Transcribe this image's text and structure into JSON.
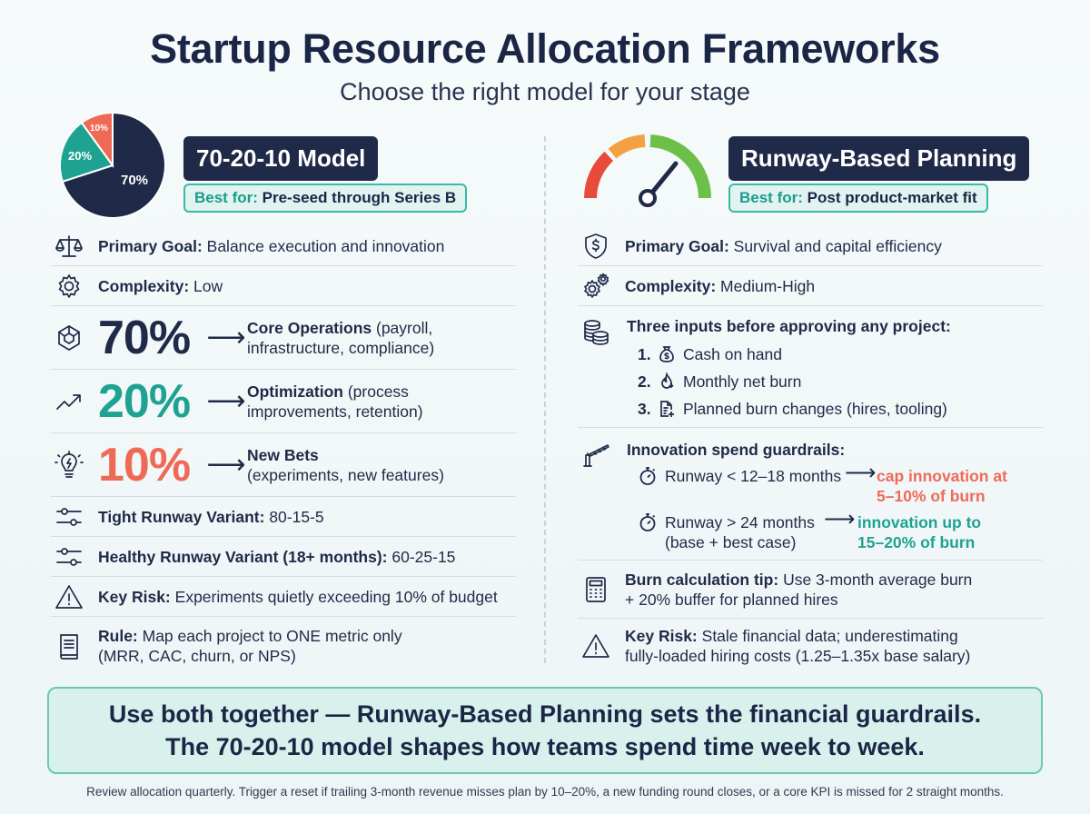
{
  "header": {
    "title": "Startup Resource Allocation Frameworks",
    "subtitle": "Choose the right model for your stage"
  },
  "left": {
    "pie": {
      "slices": [
        70,
        20,
        10
      ],
      "labels": [
        "70%",
        "20%",
        "10%"
      ],
      "colors": [
        "#1f2a48",
        "#1ea392",
        "#ef6a56"
      ]
    },
    "badge": "70-20-10 Model",
    "best_for_label": "Best for:",
    "best_for_value": "Pre-seed through Series B",
    "rows": {
      "goal_label": "Primary Goal:",
      "goal_value": "Balance execution and innovation",
      "complexity_label": "Complexity:",
      "complexity_value": "Low",
      "core_pct": "70%",
      "core_title": "Core Operations",
      "core_desc1": " (payroll,",
      "core_desc2": "infrastructure, compliance)",
      "opt_pct": "20%",
      "opt_title": "Optimization",
      "opt_desc1": " (process",
      "opt_desc2": "improvements, retention)",
      "bets_pct": "10%",
      "bets_title": "New Bets",
      "bets_desc2": "(experiments, new features)",
      "tight_label": "Tight Runway Variant:",
      "tight_value": "80-15-5",
      "healthy_label": "Healthy Runway Variant (18+ months):",
      "healthy_value": "60-25-15",
      "risk_label": "Key Risk:",
      "risk_value": "Experiments quietly exceeding 10% of budget",
      "rule_label": "Rule:",
      "rule_value1": "Map each project to ONE metric only",
      "rule_value2": "(MRR, CAC, churn, or NPS)"
    },
    "arrow": "⟶"
  },
  "right": {
    "badge": "Runway-Based Planning",
    "best_for_label": "Best for:",
    "best_for_value": "Post product-market fit",
    "gauge_colors": [
      "#e64b3c",
      "#f4a142",
      "#6cc04a"
    ],
    "goal_label": "Primary Goal:",
    "goal_value": "Survival and capital efficiency",
    "complexity_label": "Complexity:",
    "complexity_value": "Medium-High",
    "inputs_title": "Three inputs before approving any project:",
    "inputs": [
      {
        "num": "1.",
        "text": "Cash on hand"
      },
      {
        "num": "2.",
        "text": "Monthly net burn"
      },
      {
        "num": "3.",
        "text": "Planned burn changes (hires, tooling)"
      }
    ],
    "guardrails_title": "Innovation spend guardrails:",
    "guard1_cond": "Runway < 12–18 months",
    "guard1_res1": "cap innovation at",
    "guard1_res2": "5–10% of burn",
    "guard2_cond1": "Runway > 24 months",
    "guard2_cond2": "(base + best case)",
    "guard2_res1": "innovation up to",
    "guard2_res2": "15–20% of burn",
    "arrow": "⟶",
    "tip_label": "Burn calculation tip:",
    "tip_value1": "Use 3-month average burn",
    "tip_value2": "+ 20% buffer for planned hires",
    "risk_label": "Key Risk:",
    "risk_value1": "Stale financial data; underestimating",
    "risk_value2": "fully-loaded hiring costs (1.25–1.35x base salary)"
  },
  "callout": {
    "line1": "Use both together — Runway-Based Planning sets the financial guardrails.",
    "line2": "The 70-20-10 model shapes how teams spend time week to week."
  },
  "footnote": "Review allocation quarterly. Trigger a reset if trailing 3-month revenue misses plan by 10–20%, a new funding round closes, or a core KPI is missed for 2 straight months."
}
